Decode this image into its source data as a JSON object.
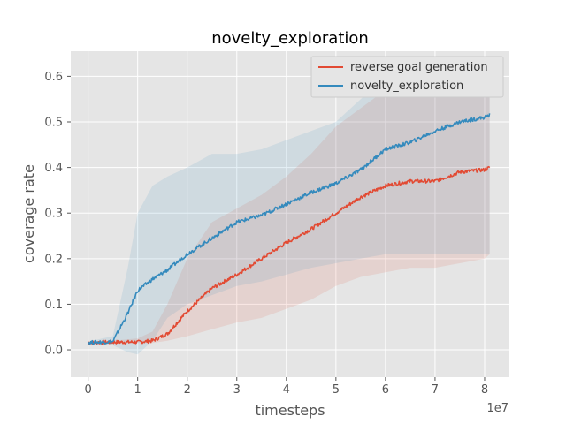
{
  "chart_data": {
    "type": "line",
    "title": "novelty_exploration",
    "xlabel": "timesteps",
    "ylabel": "coverage rate",
    "x_offset_label": "1e7",
    "xlim": [
      -0.35,
      8.5
    ],
    "ylim": [
      -0.06,
      0.655
    ],
    "xticks": [
      0,
      1,
      2,
      3,
      4,
      5,
      6,
      7,
      8
    ],
    "xtick_labels": [
      "0",
      "1",
      "2",
      "3",
      "4",
      "5",
      "6",
      "7",
      "8"
    ],
    "yticks": [
      0.0,
      0.1,
      0.2,
      0.3,
      0.4,
      0.5,
      0.6
    ],
    "ytick_labels": [
      "0.0",
      "0.1",
      "0.2",
      "0.3",
      "0.4",
      "0.5",
      "0.6"
    ],
    "grid": true,
    "legend_position": "top-right",
    "series": [
      {
        "name": "reverse goal generation",
        "color": "#E24A33",
        "x": [
          0,
          0.5,
          1.0,
          1.3,
          1.6,
          2.0,
          2.5,
          3.0,
          3.5,
          4.0,
          4.5,
          5.0,
          5.5,
          6.0,
          6.5,
          7.0,
          7.5,
          8.0,
          8.1
        ],
        "y": [
          0.016,
          0.017,
          0.017,
          0.02,
          0.035,
          0.085,
          0.135,
          0.165,
          0.2,
          0.235,
          0.265,
          0.3,
          0.335,
          0.36,
          0.37,
          0.37,
          0.39,
          0.395,
          0.4
        ],
        "lower": [
          0.015,
          0.015,
          0.015,
          0.015,
          0.02,
          0.03,
          0.045,
          0.06,
          0.07,
          0.09,
          0.11,
          0.14,
          0.16,
          0.17,
          0.18,
          0.18,
          0.19,
          0.2,
          0.21
        ],
        "upper": [
          0.018,
          0.02,
          0.025,
          0.04,
          0.1,
          0.2,
          0.28,
          0.31,
          0.34,
          0.38,
          0.43,
          0.49,
          0.53,
          0.57,
          0.57,
          0.58,
          0.6,
          0.61,
          0.61
        ]
      },
      {
        "name": "novelty_exploration",
        "color": "#348ABD",
        "x": [
          0,
          0.5,
          0.8,
          1.0,
          1.3,
          1.6,
          2.0,
          2.5,
          3.0,
          3.5,
          4.0,
          4.5,
          5.0,
          5.5,
          6.0,
          6.5,
          7.0,
          7.5,
          8.0,
          8.1
        ],
        "y": [
          0.016,
          0.018,
          0.08,
          0.13,
          0.155,
          0.175,
          0.21,
          0.245,
          0.28,
          0.295,
          0.32,
          0.345,
          0.365,
          0.395,
          0.44,
          0.455,
          0.48,
          0.5,
          0.51,
          0.515
        ],
        "lower": [
          0.015,
          0.01,
          -0.005,
          -0.01,
          0.02,
          0.07,
          0.1,
          0.12,
          0.14,
          0.15,
          0.165,
          0.18,
          0.19,
          0.2,
          0.21,
          0.21,
          0.21,
          0.21,
          0.21,
          0.21
        ],
        "upper": [
          0.018,
          0.03,
          0.18,
          0.3,
          0.36,
          0.38,
          0.4,
          0.43,
          0.43,
          0.44,
          0.46,
          0.48,
          0.5,
          0.55,
          0.6,
          0.62,
          0.62,
          0.62,
          0.62,
          0.62
        ]
      }
    ]
  }
}
